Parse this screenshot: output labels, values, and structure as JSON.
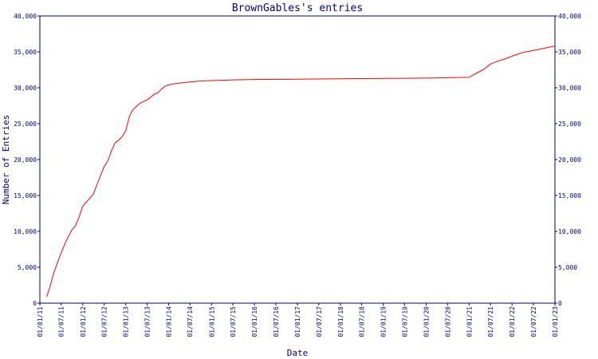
{
  "chart_data": {
    "type": "line",
    "title": "BrownGables's entries",
    "xlabel": "Date",
    "ylabel": "Number of Entries",
    "ylim": [
      0,
      40000
    ],
    "y_ticks": [
      "0",
      "5,000",
      "10,000",
      "15,000",
      "20,000",
      "25,000",
      "30,000",
      "35,000",
      "40,000"
    ],
    "y_tick_values": [
      0,
      5000,
      10000,
      15000,
      20000,
      25000,
      30000,
      35000,
      40000
    ],
    "x_ticks": [
      "01/01/11",
      "01/07/11",
      "01/01/12",
      "01/07/12",
      "01/01/13",
      "01/07/13",
      "01/01/14",
      "01/07/14",
      "01/01/15",
      "01/07/15",
      "01/01/16",
      "01/07/16",
      "01/01/17",
      "01/07/17",
      "01/01/18",
      "01/07/18",
      "01/01/19",
      "01/07/19",
      "01/01/20",
      "01/07/20",
      "01/01/21",
      "01/07/21",
      "01/01/22",
      "01/07/22",
      "01/01/23"
    ],
    "grid": false,
    "series": [
      {
        "color": "#ff0000",
        "x": [
          "2011-03-01",
          "2011-04-01",
          "2011-05-01",
          "2011-06-01",
          "2011-07-01",
          "2011-08-01",
          "2011-09-01",
          "2011-10-01",
          "2011-11-01",
          "2011-12-01",
          "2012-01-01",
          "2012-02-01",
          "2012-03-01",
          "2012-04-01",
          "2012-05-01",
          "2012-06-01",
          "2012-07-01",
          "2012-08-01",
          "2012-09-01",
          "2012-10-01",
          "2012-11-01",
          "2012-12-01",
          "2013-01-01",
          "2013-02-01",
          "2013-03-01",
          "2013-04-01",
          "2013-05-01",
          "2013-06-01",
          "2013-07-01",
          "2013-08-01",
          "2013-09-01",
          "2013-10-01",
          "2013-11-01",
          "2013-12-01",
          "2014-01-01",
          "2014-02-01",
          "2014-03-01",
          "2014-05-01",
          "2014-07-01",
          "2014-09-01",
          "2014-11-01",
          "2015-01-01",
          "2015-04-01",
          "2015-07-01",
          "2016-01-01",
          "2017-01-01",
          "2018-01-01",
          "2019-01-01",
          "2020-01-01",
          "2020-07-01",
          "2021-01-01",
          "2021-03-01",
          "2021-05-01",
          "2021-07-01",
          "2021-09-01",
          "2021-11-01",
          "2022-01-01",
          "2022-04-01",
          "2022-07-01",
          "2022-10-01",
          "2023-01-01"
        ],
        "y": [
          900,
          2500,
          4300,
          5700,
          7000,
          8200,
          9300,
          10200,
          10800,
          12000,
          13500,
          14100,
          14600,
          15200,
          16500,
          17800,
          19000,
          19800,
          21200,
          22300,
          22700,
          23200,
          24000,
          26000,
          26900,
          27400,
          27800,
          28100,
          28300,
          28700,
          29100,
          29300,
          29800,
          30200,
          30400,
          30500,
          30600,
          30700,
          30800,
          30900,
          30950,
          31000,
          31050,
          31100,
          31150,
          31200,
          31250,
          31300,
          31350,
          31400,
          31450,
          32000,
          32500,
          33300,
          33700,
          34000,
          34400,
          34900,
          35200,
          35500,
          35800
        ]
      }
    ]
  }
}
